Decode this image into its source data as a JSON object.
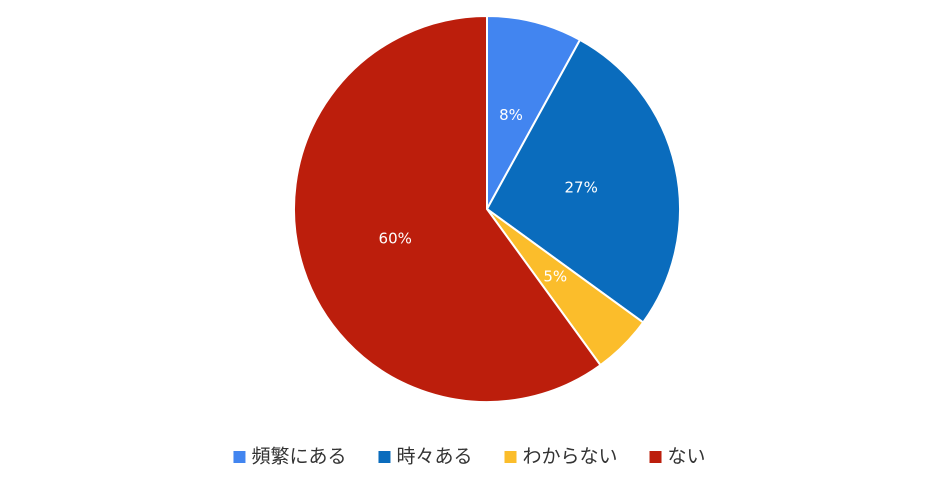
{
  "chart_data": {
    "type": "pie",
    "categories": [
      "頻繁にある",
      "時々ある",
      "わからない",
      "ない"
    ],
    "values": [
      8,
      27,
      5,
      60
    ],
    "value_labels": [
      "8%",
      "27%",
      "5%",
      "60%"
    ],
    "colors": [
      "#4285f0",
      "#0a6cbd",
      "#fbbd2b",
      "#bc1e0c"
    ],
    "legend": "bottom"
  }
}
